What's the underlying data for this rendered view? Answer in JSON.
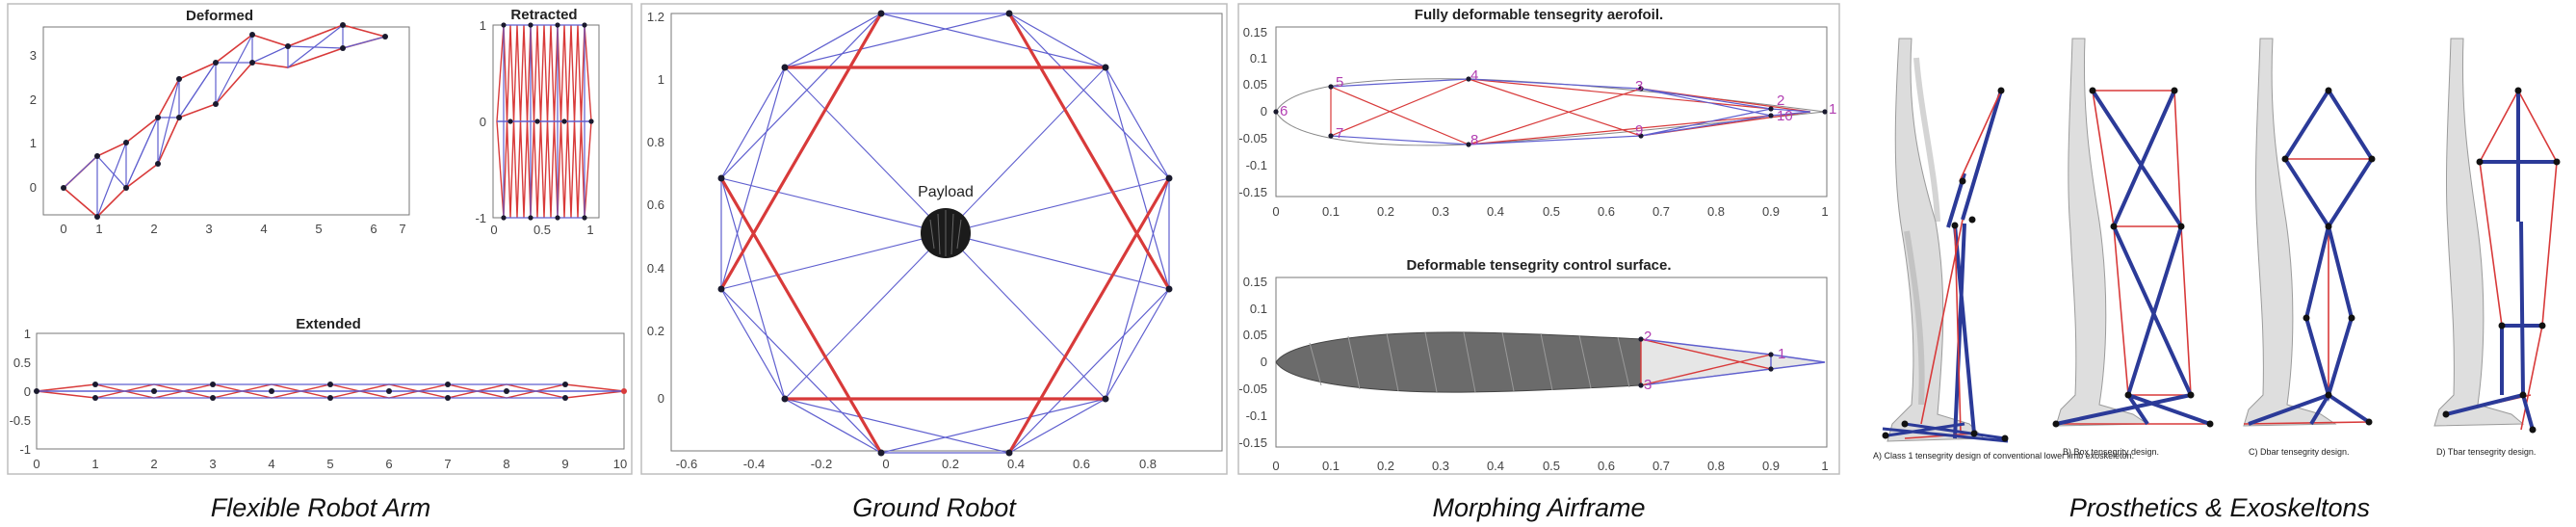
{
  "captions": {
    "robot_arm": "Flexible Robot Arm",
    "ground_robot": "Ground Robot",
    "airframe": "Morphing Airframe",
    "prosthetics": "Prosthetics & Exoskeltons"
  },
  "robot_arm": {
    "deformed": {
      "title": "Deformed",
      "x_ticks": [
        "0",
        "1",
        "2",
        "3",
        "4",
        "5",
        "6",
        "7"
      ],
      "y_ticks": [
        "3",
        "2",
        "1",
        "0"
      ]
    },
    "retracted": {
      "title": "Retracted",
      "x_ticks": [
        "0",
        "0.5",
        "1"
      ],
      "y_ticks": [
        "1",
        "0",
        "-1"
      ]
    },
    "extended": {
      "title": "Extended",
      "x_ticks": [
        "0",
        "1",
        "2",
        "3",
        "4",
        "5",
        "6",
        "7",
        "8",
        "9",
        "10"
      ],
      "y_ticks": [
        "1",
        "0.5",
        "0",
        "-0.5",
        "-1"
      ]
    }
  },
  "ground_robot": {
    "payload_label": "Payload",
    "x_ticks": [
      "-0.6",
      "-0.4",
      "-0.2",
      "0",
      "0.2",
      "0.4",
      "0.6",
      "0.8"
    ],
    "y_ticks": [
      "1.2",
      "1",
      "0.8",
      "0.6",
      "0.4",
      "0.2",
      "0"
    ]
  },
  "airframe": {
    "top_title": "Fully deformable tensegrity aerofoil.",
    "bottom_title": "Deformable tensegrity control surface.",
    "x_ticks": [
      "0",
      "0.1",
      "0.2",
      "0.3",
      "0.4",
      "0.5",
      "0.6",
      "0.7",
      "0.8",
      "0.9",
      "1"
    ],
    "top_y_ticks": [
      "0.15",
      "0.1",
      "0.05",
      "0",
      "-0.05",
      "-0.1",
      "-0.15"
    ],
    "bottom_y_ticks": [
      "0.15",
      "0.1",
      "0.05",
      "0",
      "-0.05",
      "-0.1",
      "-0.15"
    ],
    "node_numbers": [
      "1",
      "2",
      "3",
      "4",
      "5",
      "6",
      "7",
      "8",
      "9",
      "10"
    ],
    "control_nodes": [
      "1",
      "2",
      "3"
    ]
  },
  "prosthetics": {
    "labels": [
      "A) Class 1 tensegrity design of conventional lower limb exoskeleton.",
      "B) Box tensegrity design.",
      "C) Dbar tensegrity design.",
      "D) Tbar tensegrity design."
    ]
  }
}
